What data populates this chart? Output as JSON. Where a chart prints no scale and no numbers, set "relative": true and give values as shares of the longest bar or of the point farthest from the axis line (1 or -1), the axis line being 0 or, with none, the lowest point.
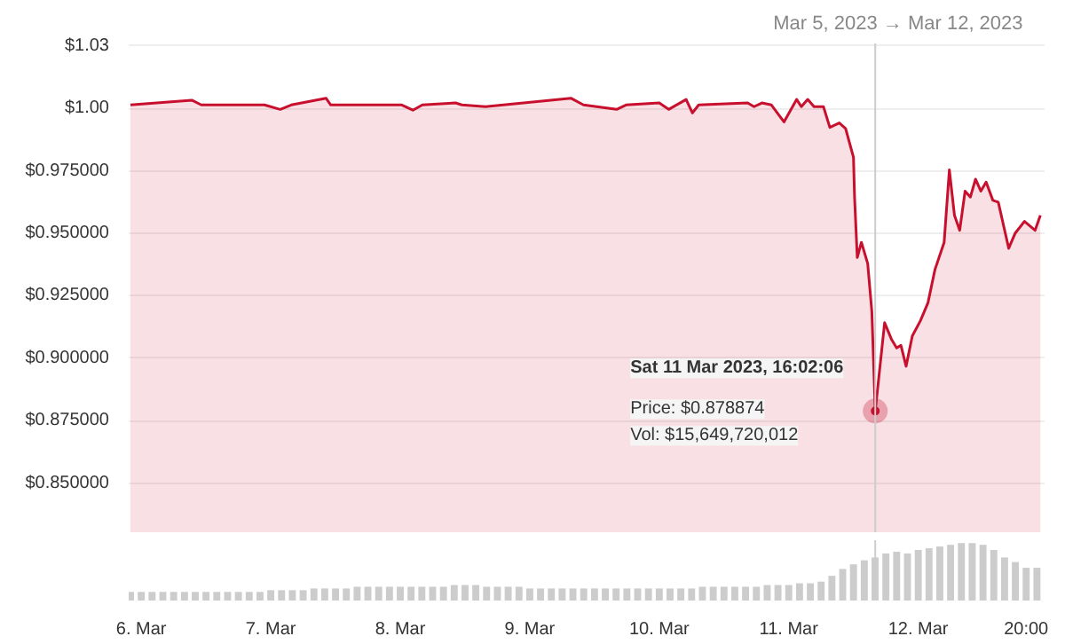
{
  "chart_data": [
    {
      "type": "area",
      "annotations": [
        "Mar 5, 2023",
        "→",
        "Mar 12, 2023",
        {
          "text": "Sat 11 Mar 2023, 16:02:06",
          "x": "2023-03-11T16:02",
          "y": 0.878874
        },
        "Price: $0.878874",
        "Vol: $15,649,720,012"
      ],
      "series": [
        {
          "color": "#c8102e",
          "x": [
            "2023-03-05T22:00",
            "2023-03-06T09:22",
            "2023-03-06T11:07",
            "2023-03-06T22:50",
            "2023-03-07T01:45",
            "2023-03-07T03:48",
            "2023-03-07T10:14",
            "2023-03-07T11:07",
            "2023-03-08T00:17",
            "2023-03-08T02:20",
            "2023-03-08T04:06",
            "2023-03-08T10:15",
            "2023-03-08T11:25",
            "2023-03-08T15:48",
            "2023-03-09T07:37",
            "2023-03-09T09:57",
            "2023-03-09T16:06",
            "2023-03-09T17:51",
            "2023-03-10T00:00",
            "2023-03-10T01:45",
            "2023-03-10T04:59",
            "2023-03-10T06:09",
            "2023-03-10T07:19",
            "2023-03-10T16:23",
            "2023-03-10T17:34",
            "2023-03-10T19:01",
            "2023-03-10T20:47",
            "2023-03-10T23:07",
            "2023-03-11T01:28",
            "2023-03-11T02:20",
            "2023-03-11T03:31",
            "2023-03-11T04:41",
            "2023-03-11T06:26",
            "2023-03-11T07:37",
            "2023-03-11T09:22",
            "2023-03-11T10:32",
            "2023-03-11T12:00",
            "2023-03-11T12:12",
            "2023-03-11T12:42",
            "2023-03-11T13:28",
            "2023-03-11T14:38",
            "2023-03-11T15:24",
            "2023-03-11T16:02",
            "2023-03-11T17:46",
            "2023-03-11T19:01",
            "2023-03-11T20:00",
            "2023-03-11T20:47",
            "2023-03-11T21:45",
            "2023-03-11T22:54",
            "2023-03-12T00:24",
            "2023-03-12T01:48",
            "2023-03-12T03:06",
            "2023-03-12T04:48",
            "2023-03-12T05:46",
            "2023-03-12T06:43",
            "2023-03-12T07:41",
            "2023-03-12T08:41",
            "2023-03-12T09:40",
            "2023-03-12T10:37",
            "2023-03-12T11:36",
            "2023-03-12T12:35",
            "2023-03-12T13:50",
            "2023-03-12T14:50",
            "2023-03-12T16:46",
            "2023-03-12T17:57",
            "2023-03-12T19:42",
            "2023-03-12T21:39",
            "2023-03-12T22:38"
          ],
          "values": [
            1.0014,
            1.0033,
            1.0014,
            1.0014,
            0.9996,
            1.0014,
            1.0041,
            1.0014,
            1.0014,
            0.9993,
            1.0014,
            1.0022,
            1.0014,
            1.0007,
            1.0041,
            1.0014,
            0.9996,
            1.0014,
            1.0022,
            0.9996,
            1.0036,
            0.9982,
            1.0014,
            1.0022,
            1.0007,
            1.0022,
            1.0014,
            0.9946,
            1.0036,
            1.0007,
            1.0036,
            1.0007,
            1.0007,
            0.9924,
            0.9942,
            0.992,
            0.9804,
            0.9645,
            0.9403,
            0.9464,
            0.9379,
            0.9188,
            0.878874,
            0.9142,
            0.9077,
            0.9041,
            0.9052,
            0.8968,
            0.9089,
            0.915,
            0.9222,
            0.9355,
            0.9464,
            0.9754,
            0.9572,
            0.9512,
            0.9669,
            0.9645,
            0.9717,
            0.9669,
            0.9705,
            0.9632,
            0.9625,
            0.944,
            0.95,
            0.9548,
            0.9512,
            0.9572
          ]
        }
      ],
      "xlim": [
        "2023-03-05T21:40",
        "2023-03-12T23:25"
      ],
      "ylim": [
        0.83,
        1.026
      ],
      "yticks": [
        {
          "value": 0.85,
          "label": "$0.850000"
        },
        {
          "value": 0.875,
          "label": "$0.875000"
        },
        {
          "value": 0.9,
          "label": "$0.900000"
        },
        {
          "value": 0.925,
          "label": "$0.925000"
        },
        {
          "value": 0.95,
          "label": "$0.950000"
        },
        {
          "value": 0.975,
          "label": "$0.975000"
        },
        {
          "value": 1.0,
          "label": "$1.00"
        },
        {
          "value": 1.025,
          "label": "$1.03"
        }
      ],
      "tick_labels": "y",
      "ref_lines": [
        {
          "axis": "x",
          "value": "2023-03-11T16:02",
          "color": "#cccccc"
        }
      ],
      "grid": "y"
    },
    {
      "type": "bar",
      "relative": true,
      "series": [
        {
          "color": "#cccccc",
          "x": [
            "2023-03-05T22:00",
            "2023-03-06T00:00",
            "2023-03-06T02:00",
            "2023-03-06T04:00",
            "2023-03-06T06:00",
            "2023-03-06T08:00",
            "2023-03-06T10:00",
            "2023-03-06T12:00",
            "2023-03-06T14:00",
            "2023-03-06T16:00",
            "2023-03-06T18:00",
            "2023-03-06T20:00",
            "2023-03-06T22:00",
            "2023-03-07T00:00",
            "2023-03-07T02:00",
            "2023-03-07T04:00",
            "2023-03-07T06:00",
            "2023-03-07T08:00",
            "2023-03-07T10:00",
            "2023-03-07T12:00",
            "2023-03-07T14:00",
            "2023-03-07T16:00",
            "2023-03-07T18:00",
            "2023-03-07T20:00",
            "2023-03-07T22:00",
            "2023-03-08T00:00",
            "2023-03-08T02:00",
            "2023-03-08T04:00",
            "2023-03-08T06:00",
            "2023-03-08T08:00",
            "2023-03-08T10:00",
            "2023-03-08T12:00",
            "2023-03-08T14:00",
            "2023-03-08T16:00",
            "2023-03-08T18:00",
            "2023-03-08T20:00",
            "2023-03-08T22:00",
            "2023-03-09T00:00",
            "2023-03-09T02:00",
            "2023-03-09T04:00",
            "2023-03-09T06:00",
            "2023-03-09T08:00",
            "2023-03-09T10:00",
            "2023-03-09T12:00",
            "2023-03-09T14:00",
            "2023-03-09T16:00",
            "2023-03-09T18:00",
            "2023-03-09T20:00",
            "2023-03-09T22:00",
            "2023-03-10T00:00",
            "2023-03-10T02:00",
            "2023-03-10T04:00",
            "2023-03-10T06:00",
            "2023-03-10T08:00",
            "2023-03-10T10:00",
            "2023-03-10T12:00",
            "2023-03-10T14:00",
            "2023-03-10T16:00",
            "2023-03-10T18:00",
            "2023-03-10T20:00",
            "2023-03-10T22:00",
            "2023-03-11T00:00",
            "2023-03-11T02:00",
            "2023-03-11T04:00",
            "2023-03-11T06:00",
            "2023-03-11T08:00",
            "2023-03-11T10:00",
            "2023-03-11T12:00",
            "2023-03-11T14:00",
            "2023-03-11T16:00",
            "2023-03-11T18:00",
            "2023-03-11T20:00",
            "2023-03-11T22:00",
            "2023-03-12T00:00",
            "2023-03-12T02:00",
            "2023-03-12T04:00",
            "2023-03-12T06:00",
            "2023-03-12T08:00",
            "2023-03-12T10:00",
            "2023-03-12T12:00",
            "2023-03-12T14:00",
            "2023-03-12T16:00",
            "2023-03-12T18:00",
            "2023-03-12T20:00",
            "2023-03-12T22:00"
          ],
          "values": [
            0.15,
            0.15,
            0.15,
            0.15,
            0.15,
            0.15,
            0.15,
            0.15,
            0.15,
            0.15,
            0.15,
            0.15,
            0.15,
            0.18,
            0.18,
            0.18,
            0.18,
            0.21,
            0.21,
            0.21,
            0.21,
            0.24,
            0.24,
            0.24,
            0.24,
            0.24,
            0.24,
            0.24,
            0.24,
            0.24,
            0.27,
            0.27,
            0.27,
            0.24,
            0.24,
            0.24,
            0.24,
            0.21,
            0.21,
            0.21,
            0.21,
            0.21,
            0.21,
            0.21,
            0.21,
            0.21,
            0.21,
            0.21,
            0.21,
            0.21,
            0.21,
            0.21,
            0.21,
            0.24,
            0.24,
            0.24,
            0.24,
            0.24,
            0.24,
            0.27,
            0.27,
            0.27,
            0.3,
            0.3,
            0.33,
            0.43,
            0.55,
            0.63,
            0.7,
            0.75,
            0.82,
            0.85,
            0.82,
            0.88,
            0.91,
            0.94,
            0.97,
            1,
            1,
            0.97,
            0.88,
            0.75,
            0.67,
            0.57,
            0.57
          ]
        }
      ],
      "xlim": [
        "2023-03-05T21:40",
        "2023-03-12T23:25"
      ],
      "xticks": [
        {
          "value": "2023-03-06",
          "label": "6. Mar"
        },
        {
          "value": "2023-03-07",
          "label": "7. Mar"
        },
        {
          "value": "2023-03-08",
          "label": "8. Mar"
        },
        {
          "value": "2023-03-09",
          "label": "9. Mar"
        },
        {
          "value": "2023-03-10",
          "label": "10. Mar"
        },
        {
          "value": "2023-03-11",
          "label": "11. Mar"
        },
        {
          "value": "2023-03-12",
          "label": "12. Mar"
        },
        {
          "value": "2023-03-12T20:00",
          "label": "20:00"
        }
      ],
      "tick_labels": "x",
      "ref_lines": [
        {
          "axis": "x",
          "value": "2023-03-11T16:02",
          "color": "#cccccc"
        }
      ]
    }
  ]
}
